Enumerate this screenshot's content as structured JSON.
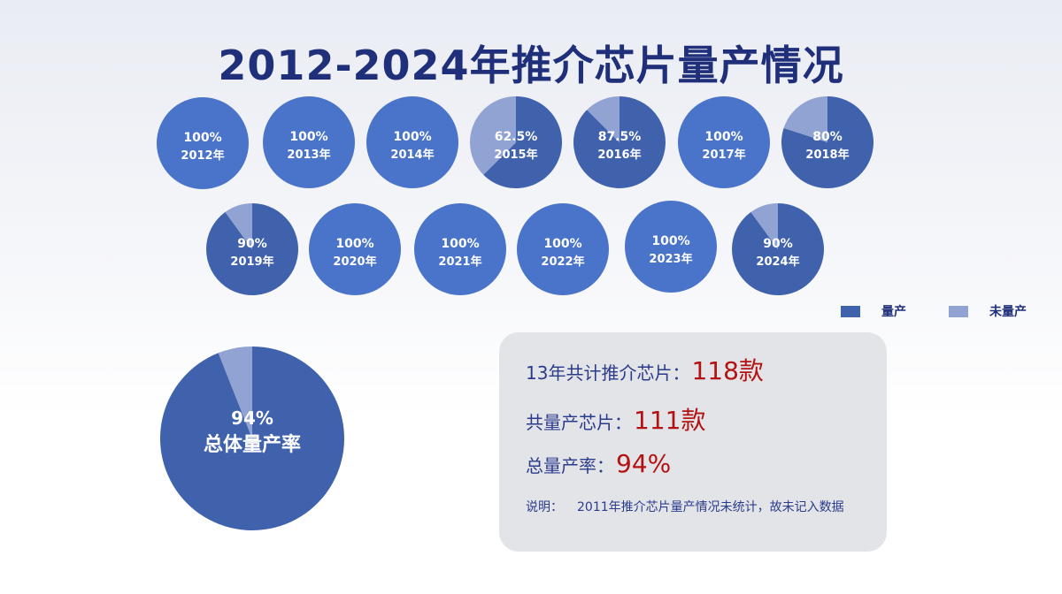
{
  "title": "2012-2024年推介芯片量产情况",
  "colors": {
    "mass_produced": "#4062ad",
    "not_mass_produced": "#91a3d3",
    "full": "#4a74c9",
    "label": "#ffffff",
    "highlight": "#b31212"
  },
  "legend": [
    {
      "label": "量产",
      "color": "#4062ad"
    },
    {
      "label": "未量产",
      "color": "#91a3d3"
    }
  ],
  "chart_data": [
    {
      "type": "pie",
      "category": "2012年",
      "label": "100%",
      "values": [
        100,
        0
      ]
    },
    {
      "type": "pie",
      "category": "2013年",
      "label": "100%",
      "values": [
        100,
        0
      ]
    },
    {
      "type": "pie",
      "category": "2014年",
      "label": "100%",
      "values": [
        100,
        0
      ]
    },
    {
      "type": "pie",
      "category": "2015年",
      "label": "62.5%",
      "values": [
        62.5,
        37.5
      ]
    },
    {
      "type": "pie",
      "category": "2016年",
      "label": "87.5%",
      "values": [
        87.5,
        12.5
      ]
    },
    {
      "type": "pie",
      "category": "2017年",
      "label": "100%",
      "values": [
        100,
        0
      ]
    },
    {
      "type": "pie",
      "category": "2018年",
      "label": "80%",
      "values": [
        80,
        20
      ]
    },
    {
      "type": "pie",
      "category": "2019年",
      "label": "90%",
      "values": [
        90,
        10
      ]
    },
    {
      "type": "pie",
      "category": "2020年",
      "label": "100%",
      "values": [
        100,
        0
      ]
    },
    {
      "type": "pie",
      "category": "2021年",
      "label": "100%",
      "values": [
        100,
        0
      ]
    },
    {
      "type": "pie",
      "category": "2022年",
      "label": "100%",
      "values": [
        100,
        0
      ]
    },
    {
      "type": "pie",
      "category": "2023年",
      "label": "100%",
      "values": [
        100,
        0
      ]
    },
    {
      "type": "pie",
      "category": "2024年",
      "label": "90%",
      "values": [
        90,
        10
      ]
    },
    {
      "type": "pie",
      "category": "总体量产率",
      "label": "94%",
      "values": [
        94,
        6
      ]
    }
  ],
  "summary": {
    "total_label": "13年共计推介芯片：",
    "total_value": "118款",
    "mass_label": "共量产芯片：",
    "mass_value": "111款",
    "rate_label": "总量产率：",
    "rate_value": "94%",
    "note_label": "说明：",
    "note_text": "2011年推介芯片量产情况未统计，故未记入数据"
  }
}
